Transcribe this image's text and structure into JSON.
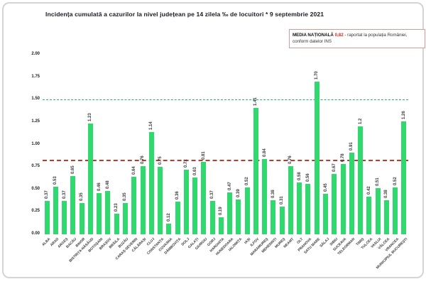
{
  "title": "Incidența cumulată a cazurilor la nivel județean pe 14 zilela ‰ de locuitori * 9 septembrie 2021",
  "legend_box": {
    "label": "MEDIA NAȚIONALĂ",
    "value": "0,82",
    "text": "- raportat la populația României,",
    "line2": "conform datelor INS",
    "border_color": "#dd9a93",
    "value_color": "#e02424"
  },
  "colors": {
    "bar": "#2fd96e",
    "threshold_line": "#2bae74",
    "average_line": "#c0392b",
    "title": "#1b1b26",
    "frame_border": "#d4d4d4",
    "tick_text": "#222222",
    "value_text": "#3a3a3a"
  },
  "chart_data": {
    "type": "bar",
    "title": "Incidența cumulată a cazurilor la nivel județean pe 14 zilela ‰ de locuitori * 9 septembrie 2021",
    "xlabel": "",
    "ylabel": "",
    "ylim": [
      0,
      2.0
    ],
    "yticks": [
      "2.00",
      "1.75",
      "1.50",
      "1.25",
      "1.00",
      "0.75",
      "0.50",
      "0.25",
      "0.00"
    ],
    "grid": false,
    "legend_position": "top-right",
    "categories": [
      "ALBA",
      "ARAD",
      "ARGEȘ",
      "BACĂU",
      "BIHOR",
      "BISTRIȚA-NĂSĂUD",
      "BOTOȘANI",
      "BRAȘOV",
      "BRĂILA",
      "BUZĂU",
      "CARAȘ-SEVERIN",
      "CĂLĂRAȘI",
      "CLUJ",
      "CONSTANȚA",
      "COVASNA",
      "DÂMBOVIȚA",
      "DOLJ",
      "GALAȚI",
      "GIURGIU",
      "GORJ",
      "HARGHITA",
      "HUNEDOARA",
      "IALOMIȚA",
      "IAȘI",
      "ILFOV",
      "MARAMUREȘ",
      "MEHEDINȚI",
      "MUREȘ",
      "NEAMȚ",
      "OLT",
      "PRAHOVA",
      "SATU MARE",
      "SĂLAJ",
      "SIBIU",
      "SUCEAVA",
      "TELEORMAN",
      "TIMIȘ",
      "TULCEA",
      "VASLUI",
      "VÂLCEA",
      "VRANCEA",
      "MUNICIPIUL BUCUREȘTI"
    ],
    "values": [
      0.37,
      0.53,
      0.37,
      0.65,
      0.35,
      1.23,
      0.46,
      0.48,
      0.23,
      0.35,
      0.64,
      0.76,
      1.14,
      0.75,
      0.12,
      0.36,
      0.72,
      0.63,
      0.81,
      0.37,
      0.19,
      0.47,
      0.39,
      0.52,
      1.41,
      0.84,
      0.38,
      0.31,
      0.76,
      0.58,
      0.56,
      1.7,
      0.45,
      0.67,
      0.78,
      0.91,
      1.2,
      0.42,
      0.51,
      0.38,
      0.52,
      1.26
    ],
    "value_labels": [
      "0.37",
      "0.53",
      "0.37",
      "0.65",
      "0.35",
      "1.23",
      "0.46",
      "0.48",
      "0.23",
      "0.35",
      "0.64",
      "0.76",
      "1.14",
      "0.75",
      "0.12",
      "0.36",
      "0.72",
      "0.63",
      "0.81",
      "0.37",
      "0.19",
      "0.47",
      "0.39",
      "0.52",
      "1.41",
      "0.84",
      "0.38",
      "0.31",
      "0.76",
      "0.58",
      "0.56",
      "1.70",
      "0.45",
      "0.67",
      "0.78",
      "0.91",
      "1.2",
      "0.42",
      "0.51",
      "0.38",
      "0.52",
      "1.26"
    ],
    "reference_lines": [
      {
        "name": "upper-threshold-line",
        "value": 1.5,
        "color": "#2bae74",
        "style": "dashed",
        "thickness": 1.5
      },
      {
        "name": "national-average-line",
        "value": 0.82,
        "color": "#c0392b",
        "style": "dashed",
        "thickness": 2
      }
    ]
  }
}
